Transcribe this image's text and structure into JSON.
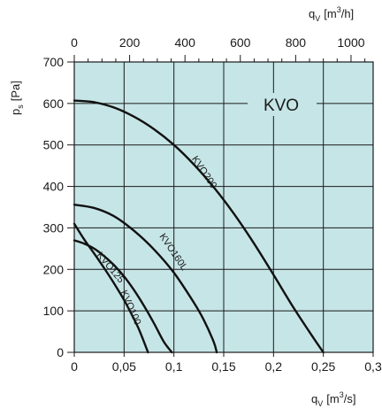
{
  "chart_data": {
    "type": "line",
    "title": "KVO",
    "grid": true,
    "colors": {
      "plot_background": "#c6e5e6",
      "grid": "#1a1a1a",
      "curve": "#111111"
    },
    "x_axis": {
      "label_main": "q",
      "label_sub": "V",
      "label_unit": "[m3/s]",
      "label_unit_base": "[m",
      "label_unit_sup": "3",
      "label_unit_tail": "/s]",
      "range": [
        0,
        0.3
      ],
      "ticks": [
        0,
        0.05,
        0.1,
        0.15,
        0.2,
        0.25,
        0.3
      ],
      "tick_labels": [
        "0",
        "0,05",
        "0,1",
        "0,15",
        "0,2",
        "0,25",
        "0,3"
      ]
    },
    "x2_axis": {
      "label_main": "q",
      "label_sub": "V",
      "label_unit": "[m3/h]",
      "label_unit_base": "[m",
      "label_unit_sup": "3",
      "label_unit_tail": "/h]",
      "range": [
        0,
        1080
      ],
      "ticks": [
        0,
        200,
        400,
        600,
        800,
        1000
      ],
      "tick_labels": [
        "0",
        "200",
        "400",
        "600",
        "800",
        "1000"
      ]
    },
    "y_axis": {
      "label_main": "p",
      "label_sub": "s",
      "label_unit": "[Pa]",
      "range": [
        0,
        700
      ],
      "ticks": [
        0,
        100,
        200,
        300,
        400,
        500,
        600,
        700
      ],
      "tick_labels": [
        "0",
        "100",
        "200",
        "300",
        "400",
        "500",
        "600",
        "700"
      ]
    },
    "series": [
      {
        "name": "KVO200",
        "x": [
          0,
          0.02,
          0.04,
          0.06,
          0.08,
          0.1,
          0.12,
          0.14,
          0.16,
          0.18,
          0.2,
          0.22,
          0.24,
          0.25
        ],
        "y": [
          607,
          603,
          590,
          568,
          538,
          500,
          453,
          398,
          335,
          264,
          187,
          108,
          35,
          0
        ]
      },
      {
        "name": "KVO160L",
        "x": [
          0,
          0.02,
          0.04,
          0.06,
          0.08,
          0.1,
          0.12,
          0.13,
          0.14,
          0.143
        ],
        "y": [
          356,
          348,
          328,
          293,
          248,
          192,
          120,
          78,
          25,
          0
        ]
      },
      {
        "name": "KVO125",
        "x": [
          0,
          0.01,
          0.02,
          0.03,
          0.04,
          0.05,
          0.06,
          0.07,
          0.08,
          0.09,
          0.098
        ],
        "y": [
          270,
          262,
          250,
          232,
          210,
          183,
          150,
          112,
          70,
          25,
          0
        ]
      },
      {
        "name": "KVO100",
        "x": [
          0,
          0.01,
          0.02,
          0.03,
          0.04,
          0.05,
          0.06,
          0.065,
          0.07,
          0.074
        ],
        "y": [
          310,
          272,
          238,
          203,
          166,
          126,
          80,
          55,
          25,
          0
        ]
      }
    ]
  }
}
